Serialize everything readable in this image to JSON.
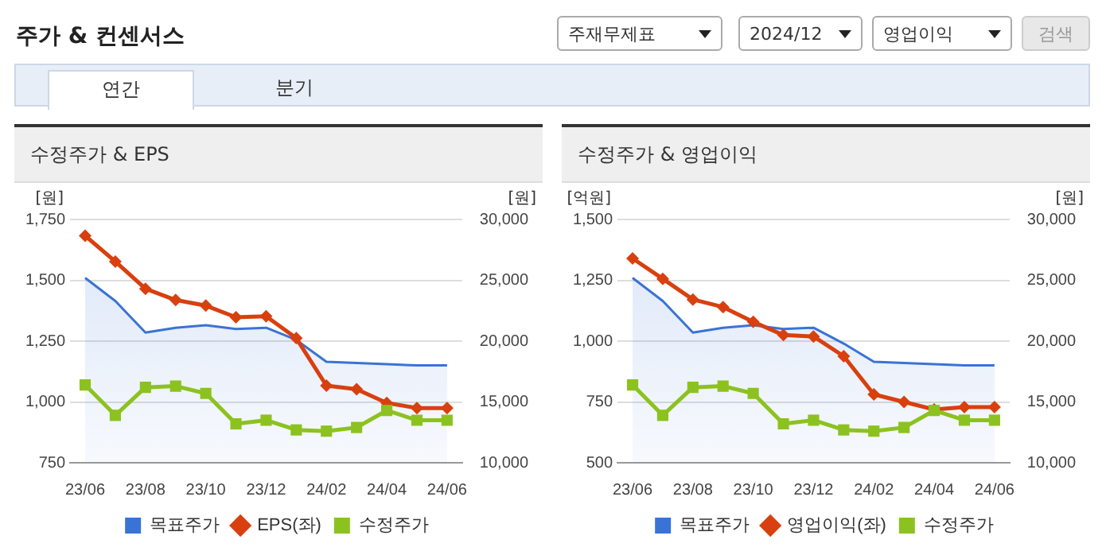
{
  "chart_data": [
    {
      "type": "other",
      "title": "주가 & 컨센서스",
      "annotations": [
        "주재무제표",
        "2024/12",
        "영업이익",
        "검색",
        "연간",
        "분기"
      ]
    },
    {
      "type": "line",
      "title": "수정주가 & EPS",
      "ylabel": "[원]",
      "y2label": "[원]",
      "categories": [
        "23/06",
        null,
        "23/08",
        null,
        "23/10",
        null,
        "23/12",
        null,
        "24/02",
        null,
        "24/04",
        null,
        "24/06"
      ],
      "series": [
        {
          "name": "목표주가",
          "type": "area",
          "axis": "y2",
          "marker": "none",
          "color": "#3a73d6",
          "values": [
            25200,
            23300,
            20700,
            21100,
            21300,
            21000,
            21100,
            20100,
            18300,
            18200,
            18100,
            18000,
            18000
          ]
        },
        {
          "name": "EPS(좌)",
          "type": "line",
          "marker": "diamond",
          "color": "#d8400f",
          "values": [
            1683,
            1577,
            1465,
            1419,
            1396,
            1348,
            1352,
            1262,
            1067,
            1052,
            996,
            975,
            975
          ]
        },
        {
          "name": "수정주가",
          "type": "line",
          "axis": "y2",
          "marker": "square",
          "color": "#8cc21f",
          "values": [
            16400,
            13900,
            16200,
            16300,
            15700,
            13200,
            13500,
            12700,
            12600,
            12900,
            14300,
            13500,
            13500
          ]
        }
      ],
      "ylim": [
        750,
        1750
      ],
      "yticks": [
        {
          "value": 750,
          "label": "750"
        },
        {
          "value": 1000,
          "label": "1,000"
        },
        {
          "value": 1250,
          "label": "1,250"
        },
        {
          "value": 1500,
          "label": "1,500"
        },
        {
          "value": 1750,
          "label": "1,750"
        }
      ],
      "y2lim": [
        10000,
        30000
      ],
      "y2ticks": [
        {
          "value": 10000,
          "label": "10,000"
        },
        {
          "value": 15000,
          "label": "15,000"
        },
        {
          "value": 20000,
          "label": "20,000"
        },
        {
          "value": 25000,
          "label": "25,000"
        },
        {
          "value": 30000,
          "label": "30,000"
        }
      ],
      "grid": "y",
      "legend": "bottom"
    },
    {
      "type": "line",
      "title": "수정주가 & 영업이익",
      "ylabel": "[억원]",
      "y2label": "[원]",
      "categories": [
        "23/06",
        null,
        "23/08",
        null,
        "23/10",
        null,
        "23/12",
        null,
        "24/02",
        null,
        "24/04",
        null,
        "24/06"
      ],
      "series": [
        {
          "name": "목표주가",
          "type": "area",
          "axis": "y2",
          "marker": "none",
          "color": "#3a73d6",
          "values": [
            25200,
            23300,
            20700,
            21100,
            21300,
            21000,
            21100,
            19800,
            18300,
            18200,
            18100,
            18000,
            18000
          ]
        },
        {
          "name": "영업이익(좌)",
          "type": "line",
          "marker": "diamond",
          "color": "#d8400f",
          "values": [
            1340,
            1256,
            1171,
            1140,
            1079,
            1025,
            1019,
            938,
            781,
            750,
            719,
            729,
            729
          ]
        },
        {
          "name": "수정주가",
          "type": "line",
          "axis": "y2",
          "marker": "square",
          "color": "#8cc21f",
          "values": [
            16400,
            13900,
            16200,
            16300,
            15700,
            13200,
            13500,
            12700,
            12600,
            12900,
            14300,
            13500,
            13500
          ]
        }
      ],
      "ylim": [
        500,
        1500
      ],
      "yticks": [
        {
          "value": 500,
          "label": "500"
        },
        {
          "value": 750,
          "label": "750"
        },
        {
          "value": 1000,
          "label": "1,000"
        },
        {
          "value": 1250,
          "label": "1,250"
        },
        {
          "value": 1500,
          "label": "1,500"
        }
      ],
      "y2lim": [
        10000,
        30000
      ],
      "y2ticks": [
        {
          "value": 10000,
          "label": "10,000"
        },
        {
          "value": 15000,
          "label": "15,000"
        },
        {
          "value": 20000,
          "label": "20,000"
        },
        {
          "value": 25000,
          "label": "25,000"
        },
        {
          "value": 30000,
          "label": "30,000"
        }
      ],
      "grid": "y",
      "legend": "bottom"
    }
  ]
}
